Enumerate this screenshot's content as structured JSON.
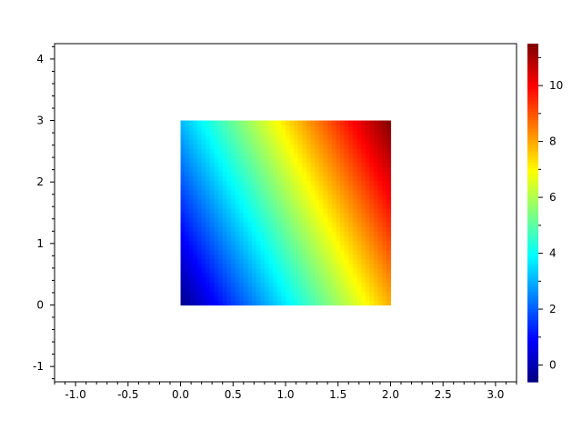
{
  "chart_data": {
    "type": "heatmap",
    "title": "",
    "xlabel": "",
    "ylabel": "",
    "xlim": [
      -1.2,
      3.2
    ],
    "ylim": [
      -1.25,
      4.25
    ],
    "x": [
      0,
      0.5,
      1.0,
      1.5,
      2.0
    ],
    "y": [
      0,
      1,
      2,
      3
    ],
    "z": [
      [
        -0.5,
        1.6,
        3.7,
        5.8,
        7.9
      ],
      [
        0.7,
        2.8,
        4.9,
        7.0,
        9.1
      ],
      [
        1.9,
        4.0,
        6.1,
        8.2,
        10.3
      ],
      [
        3.1,
        5.2,
        7.3,
        9.4,
        11.5
      ]
    ],
    "colormap": "jet",
    "color_range": [
      -0.6,
      11.5
    ],
    "xticks": [
      "-1.0",
      "-0.5",
      "0.0",
      "0.5",
      "1.0",
      "1.5",
      "2.0",
      "2.5",
      "3.0"
    ],
    "yticks": [
      "-1",
      "0",
      "1",
      "2",
      "3",
      "4"
    ],
    "colorbar_ticks": [
      "0",
      "2",
      "4",
      "6",
      "8",
      "10"
    ],
    "grid": false,
    "colorbar": "right"
  }
}
